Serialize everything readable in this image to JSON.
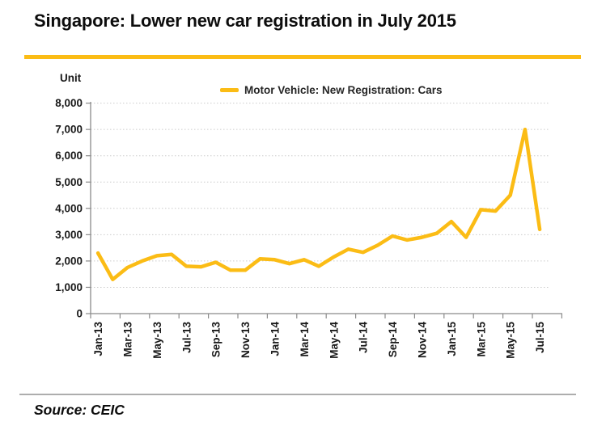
{
  "header": {
    "title": "Singapore: Lower new car registration in July 2015"
  },
  "chart": {
    "unit_label": "Unit",
    "legend_label": "Motor Vehicle: New Registration: Cars"
  },
  "source": {
    "text": "Source: CEIC"
  },
  "colors": {
    "accent": "#FBBC15",
    "grid": "#CBCBCB",
    "axis": "#8A8A8A",
    "label_text": "#1A1A1A"
  },
  "chart_data": {
    "type": "line",
    "title": "Singapore: Lower new car registration in July 2015",
    "ylabel": "Unit",
    "xlabel": "",
    "ylim": [
      0,
      8000
    ],
    "ytick_step": 1000,
    "grid": "dotted-horizontal",
    "legend_position": "top-center",
    "categories": [
      "Jan-13",
      "Feb-13",
      "Mar-13",
      "Apr-13",
      "May-13",
      "Jun-13",
      "Jul-13",
      "Aug-13",
      "Sep-13",
      "Oct-13",
      "Nov-13",
      "Dec-13",
      "Jan-14",
      "Feb-14",
      "Mar-14",
      "Apr-14",
      "May-14",
      "Jun-14",
      "Jul-14",
      "Aug-14",
      "Sep-14",
      "Oct-14",
      "Nov-14",
      "Dec-14",
      "Jan-15",
      "Feb-15",
      "Mar-15",
      "Apr-15",
      "May-15",
      "Jun-15",
      "Jul-15"
    ],
    "x_tick_labels": [
      "Jan-13",
      "Mar-13",
      "May-13",
      "Jul-13",
      "Sep-13",
      "Nov-13",
      "Jan-14",
      "Mar-14",
      "May-14",
      "Jul-14",
      "Sep-14",
      "Nov-14",
      "Jan-15",
      "Mar-15",
      "May-15",
      "Jul-15"
    ],
    "y_tick_labels": [
      "0",
      "1,000",
      "2,000",
      "3,000",
      "4,000",
      "5,000",
      "6,000",
      "7,000",
      "8,000"
    ],
    "series": [
      {
        "name": "Motor Vehicle: New Registration: Cars",
        "values": [
          2300,
          1300,
          1750,
          2000,
          2200,
          2250,
          1800,
          1780,
          1950,
          1650,
          1650,
          2080,
          2050,
          1900,
          2050,
          1800,
          2150,
          2450,
          2330,
          2600,
          2950,
          2800,
          2900,
          3050,
          3500,
          2900,
          3950,
          3900,
          4500,
          7000,
          3200
        ]
      }
    ]
  }
}
